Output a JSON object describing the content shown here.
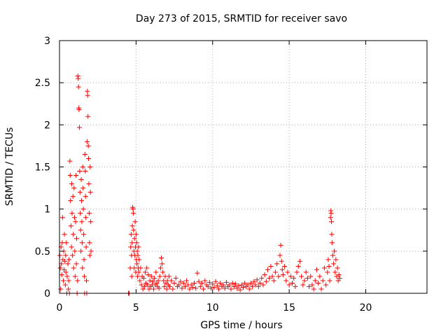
{
  "chart_data": {
    "type": "scatter",
    "title": "Day 273 of 2015, SRMTID for receiver savo",
    "xlabel": "GPS time / hours",
    "ylabel": "SRMTID / TECUs",
    "xlim": [
      0,
      24
    ],
    "ylim": [
      0,
      3
    ],
    "xticks": [
      "0",
      "5",
      "10",
      "15",
      "20"
    ],
    "yticks": [
      "0",
      "0.5",
      "1",
      "1.5",
      "2",
      "2.5",
      "3"
    ],
    "grid": true,
    "marker": "+",
    "color": "#ff0000",
    "series": [
      {
        "name": "SRMTID",
        "points": [
          [
            0.02,
            0.45
          ],
          [
            0.05,
            0.3
          ],
          [
            0.08,
            0.05
          ],
          [
            0.1,
            0.55
          ],
          [
            0.12,
            0.35
          ],
          [
            0.15,
            0.22
          ],
          [
            0.18,
            0.6
          ],
          [
            0.2,
            0.9
          ],
          [
            0.22,
            0.4
          ],
          [
            0.25,
            0.15
          ],
          [
            0.28,
            0.5
          ],
          [
            0.3,
            0.28
          ],
          [
            0.32,
            0.7
          ],
          [
            0.35,
            0.38
          ],
          [
            0.38,
            0.1
          ],
          [
            0.4,
            0.45
          ],
          [
            0.42,
            0.25
          ],
          [
            0.45,
            0.6
          ],
          [
            0.48,
            0.0
          ],
          [
            0.5,
            0.2
          ],
          [
            0.55,
            0.35
          ],
          [
            0.58,
            0.05
          ],
          [
            0.6,
            0.15
          ],
          [
            0.62,
            0.4
          ],
          [
            0.65,
            0.0
          ],
          [
            0.68,
            1.57
          ],
          [
            0.7,
            1.4
          ],
          [
            0.72,
            1.1
          ],
          [
            0.75,
            0.8
          ],
          [
            0.78,
            0.55
          ],
          [
            0.8,
            1.3
          ],
          [
            0.82,
            0.95
          ],
          [
            0.85,
            0.45
          ],
          [
            0.88,
            1.15
          ],
          [
            0.9,
            0.7
          ],
          [
            0.92,
            0.3
          ],
          [
            0.95,
            1.25
          ],
          [
            0.98,
            0.9
          ],
          [
            1.0,
            0.5
          ],
          [
            1.02,
            0.2
          ],
          [
            1.05,
            0.85
          ],
          [
            1.08,
            1.4
          ],
          [
            1.1,
            0.35
          ],
          [
            1.12,
            0.65
          ],
          [
            1.15,
            0.0
          ],
          [
            1.18,
            0.15
          ],
          [
            1.2,
            2.58
          ],
          [
            1.22,
            2.55
          ],
          [
            1.24,
            2.45
          ],
          [
            1.26,
            2.2
          ],
          [
            1.28,
            2.18
          ],
          [
            1.3,
            1.97
          ],
          [
            1.32,
            1.45
          ],
          [
            1.34,
            1.2
          ],
          [
            1.36,
            0.95
          ],
          [
            1.38,
            0.75
          ],
          [
            1.4,
            0.5
          ],
          [
            1.42,
            1.35
          ],
          [
            1.44,
            1.1
          ],
          [
            1.46,
            0.85
          ],
          [
            1.48,
            0.6
          ],
          [
            1.5,
            0.3
          ],
          [
            1.52,
            1.5
          ],
          [
            1.54,
            1.25
          ],
          [
            1.56,
            1.0
          ],
          [
            1.58,
            0.7
          ],
          [
            1.6,
            0.4
          ],
          [
            1.62,
            0.2
          ],
          [
            1.64,
            0.0
          ],
          [
            1.66,
            1.65
          ],
          [
            1.68,
            1.45
          ],
          [
            1.7,
            1.15
          ],
          [
            1.72,
            0.9
          ],
          [
            1.74,
            0.55
          ],
          [
            1.76,
            0.15
          ],
          [
            1.78,
            0.0
          ],
          [
            1.8,
            1.8
          ],
          [
            1.82,
            2.4
          ],
          [
            1.84,
            2.35
          ],
          [
            1.86,
            2.1
          ],
          [
            1.88,
            1.75
          ],
          [
            1.9,
            1.6
          ],
          [
            1.92,
            1.3
          ],
          [
            1.94,
            0.95
          ],
          [
            1.96,
            0.6
          ],
          [
            1.98,
            0.45
          ],
          [
            2.0,
            1.5
          ],
          [
            2.02,
            1.2
          ],
          [
            2.04,
            0.85
          ],
          [
            2.06,
            0.5
          ],
          [
            4.5,
            0.0
          ],
          [
            4.55,
            0.0
          ],
          [
            4.62,
            0.3
          ],
          [
            4.65,
            0.55
          ],
          [
            4.68,
            0.7
          ],
          [
            4.7,
            0.45
          ],
          [
            4.72,
            0.2
          ],
          [
            4.74,
            0.6
          ],
          [
            4.76,
            0.8
          ],
          [
            4.78,
            1.02
          ],
          [
            4.8,
            1.0
          ],
          [
            4.82,
            0.95
          ],
          [
            4.84,
            0.75
          ],
          [
            4.86,
            0.5
          ],
          [
            4.88,
            0.3
          ],
          [
            4.9,
            0.65
          ],
          [
            4.92,
            0.45
          ],
          [
            4.94,
            0.85
          ],
          [
            4.96,
            0.55
          ],
          [
            4.98,
            0.25
          ],
          [
            5.0,
            0.7
          ],
          [
            5.02,
            0.4
          ],
          [
            5.04,
            0.6
          ],
          [
            5.06,
            0.35
          ],
          [
            5.08,
            0.5
          ],
          [
            5.1,
            0.2
          ],
          [
            5.12,
            0.45
          ],
          [
            5.14,
            0.3
          ],
          [
            5.16,
            0.55
          ],
          [
            5.18,
            0.25
          ],
          [
            5.2,
            0.4
          ],
          [
            5.25,
            0.15
          ],
          [
            5.3,
            0.3
          ],
          [
            5.35,
            0.1
          ],
          [
            5.4,
            0.2
          ],
          [
            5.45,
            0.05
          ],
          [
            5.5,
            0.18
          ],
          [
            5.55,
            0.08
          ],
          [
            5.6,
            0.25
          ],
          [
            5.65,
            0.12
          ],
          [
            5.7,
            0.3
          ],
          [
            5.75,
            0.1
          ],
          [
            5.8,
            0.22
          ],
          [
            5.85,
            0.05
          ],
          [
            5.9,
            0.15
          ],
          [
            5.95,
            0.08
          ],
          [
            6.0,
            0.2
          ],
          [
            6.05,
            0.1
          ],
          [
            6.1,
            0.14
          ],
          [
            6.15,
            0.05
          ],
          [
            6.2,
            0.18
          ],
          [
            6.25,
            0.1
          ],
          [
            6.3,
            0.25
          ],
          [
            6.35,
            0.12
          ],
          [
            6.4,
            0.08
          ],
          [
            6.45,
            0.15
          ],
          [
            6.5,
            0.06
          ],
          [
            6.55,
            0.2
          ],
          [
            6.6,
            0.3
          ],
          [
            6.65,
            0.42
          ],
          [
            6.7,
            0.35
          ],
          [
            6.75,
            0.25
          ],
          [
            6.8,
            0.15
          ],
          [
            6.85,
            0.08
          ],
          [
            6.9,
            0.2
          ],
          [
            6.95,
            0.12
          ],
          [
            7.0,
            0.05
          ],
          [
            7.05,
            0.15
          ],
          [
            7.1,
            0.1
          ],
          [
            7.15,
            0.2
          ],
          [
            7.2,
            0.08
          ],
          [
            7.3,
            0.15
          ],
          [
            7.4,
            0.05
          ],
          [
            7.5,
            0.12
          ],
          [
            7.6,
            0.18
          ],
          [
            7.7,
            0.08
          ],
          [
            7.8,
            0.1
          ],
          [
            7.9,
            0.14
          ],
          [
            8.0,
            0.06
          ],
          [
            8.1,
            0.12
          ],
          [
            8.2,
            0.08
          ],
          [
            8.3,
            0.15
          ],
          [
            8.4,
            0.1
          ],
          [
            8.5,
            0.05
          ],
          [
            8.6,
            0.1
          ],
          [
            8.7,
            0.07
          ],
          [
            8.8,
            0.12
          ],
          [
            8.9,
            0.06
          ],
          [
            9.0,
            0.24
          ],
          [
            9.1,
            0.14
          ],
          [
            9.2,
            0.08
          ],
          [
            9.3,
            0.12
          ],
          [
            9.4,
            0.05
          ],
          [
            9.5,
            0.15
          ],
          [
            9.6,
            0.1
          ],
          [
            9.7,
            0.08
          ],
          [
            9.8,
            0.13
          ],
          [
            9.9,
            0.06
          ],
          [
            10.0,
            0.11
          ],
          [
            10.1,
            0.07
          ],
          [
            10.2,
            0.14
          ],
          [
            10.3,
            0.09
          ],
          [
            10.4,
            0.05
          ],
          [
            10.5,
            0.12
          ],
          [
            10.6,
            0.08
          ],
          [
            10.7,
            0.1
          ],
          [
            10.8,
            0.06
          ],
          [
            10.9,
            0.13
          ],
          [
            11.0,
            0.08
          ],
          [
            11.1,
            0.1
          ],
          [
            11.2,
            0.05
          ],
          [
            11.3,
            0.12
          ],
          [
            11.4,
            0.08
          ],
          [
            11.5,
            0.11
          ],
          [
            11.6,
            0.06
          ],
          [
            11.7,
            0.09
          ],
          [
            11.8,
            0.04
          ],
          [
            11.9,
            0.1
          ],
          [
            12.0,
            0.07
          ],
          [
            12.1,
            0.12
          ],
          [
            12.2,
            0.08
          ],
          [
            12.3,
            0.1
          ],
          [
            12.4,
            0.05
          ],
          [
            12.5,
            0.12
          ],
          [
            12.6,
            0.08
          ],
          [
            12.7,
            0.14
          ],
          [
            12.8,
            0.1
          ],
          [
            12.9,
            0.16
          ],
          [
            13.0,
            0.08
          ],
          [
            13.1,
            0.12
          ],
          [
            13.2,
            0.18
          ],
          [
            13.3,
            0.1
          ],
          [
            13.4,
            0.22
          ],
          [
            13.5,
            0.14
          ],
          [
            13.6,
            0.28
          ],
          [
            13.7,
            0.18
          ],
          [
            13.8,
            0.32
          ],
          [
            13.9,
            0.2
          ],
          [
            14.0,
            0.15
          ],
          [
            14.1,
            0.25
          ],
          [
            14.2,
            0.35
          ],
          [
            14.3,
            0.2
          ],
          [
            14.4,
            0.45
          ],
          [
            14.45,
            0.57
          ],
          [
            14.5,
            0.38
          ],
          [
            14.55,
            0.28
          ],
          [
            14.6,
            0.22
          ],
          [
            14.7,
            0.32
          ],
          [
            14.8,
            0.15
          ],
          [
            14.9,
            0.25
          ],
          [
            15.0,
            0.1
          ],
          [
            15.1,
            0.2
          ],
          [
            15.2,
            0.12
          ],
          [
            15.3,
            0.18
          ],
          [
            15.4,
            0.08
          ],
          [
            15.5,
            0.25
          ],
          [
            15.6,
            0.32
          ],
          [
            15.7,
            0.38
          ],
          [
            15.8,
            0.2
          ],
          [
            15.9,
            0.1
          ],
          [
            16.0,
            0.15
          ],
          [
            16.1,
            0.25
          ],
          [
            16.2,
            0.18
          ],
          [
            16.3,
            0.08
          ],
          [
            16.4,
            0.2
          ],
          [
            16.5,
            0.1
          ],
          [
            16.6,
            0.05
          ],
          [
            16.7,
            0.15
          ],
          [
            16.8,
            0.28
          ],
          [
            16.9,
            0.12
          ],
          [
            17.0,
            0.2
          ],
          [
            17.1,
            0.05
          ],
          [
            17.2,
            0.15
          ],
          [
            17.3,
            0.3
          ],
          [
            17.4,
            0.1
          ],
          [
            17.5,
            0.25
          ],
          [
            17.55,
            0.4
          ],
          [
            17.6,
            0.32
          ],
          [
            17.65,
            0.15
          ],
          [
            17.7,
            0.9
          ],
          [
            17.72,
            0.98
          ],
          [
            17.74,
            0.95
          ],
          [
            17.76,
            0.85
          ],
          [
            17.78,
            0.7
          ],
          [
            17.8,
            0.6
          ],
          [
            17.85,
            0.45
          ],
          [
            17.9,
            0.35
          ],
          [
            17.95,
            0.5
          ],
          [
            18.0,
            0.25
          ],
          [
            18.05,
            0.4
          ],
          [
            18.1,
            0.2
          ],
          [
            18.15,
            0.3
          ],
          [
            18.2,
            0.15
          ],
          [
            18.25,
            0.22
          ],
          [
            18.3,
            0.18
          ]
        ]
      }
    ]
  }
}
